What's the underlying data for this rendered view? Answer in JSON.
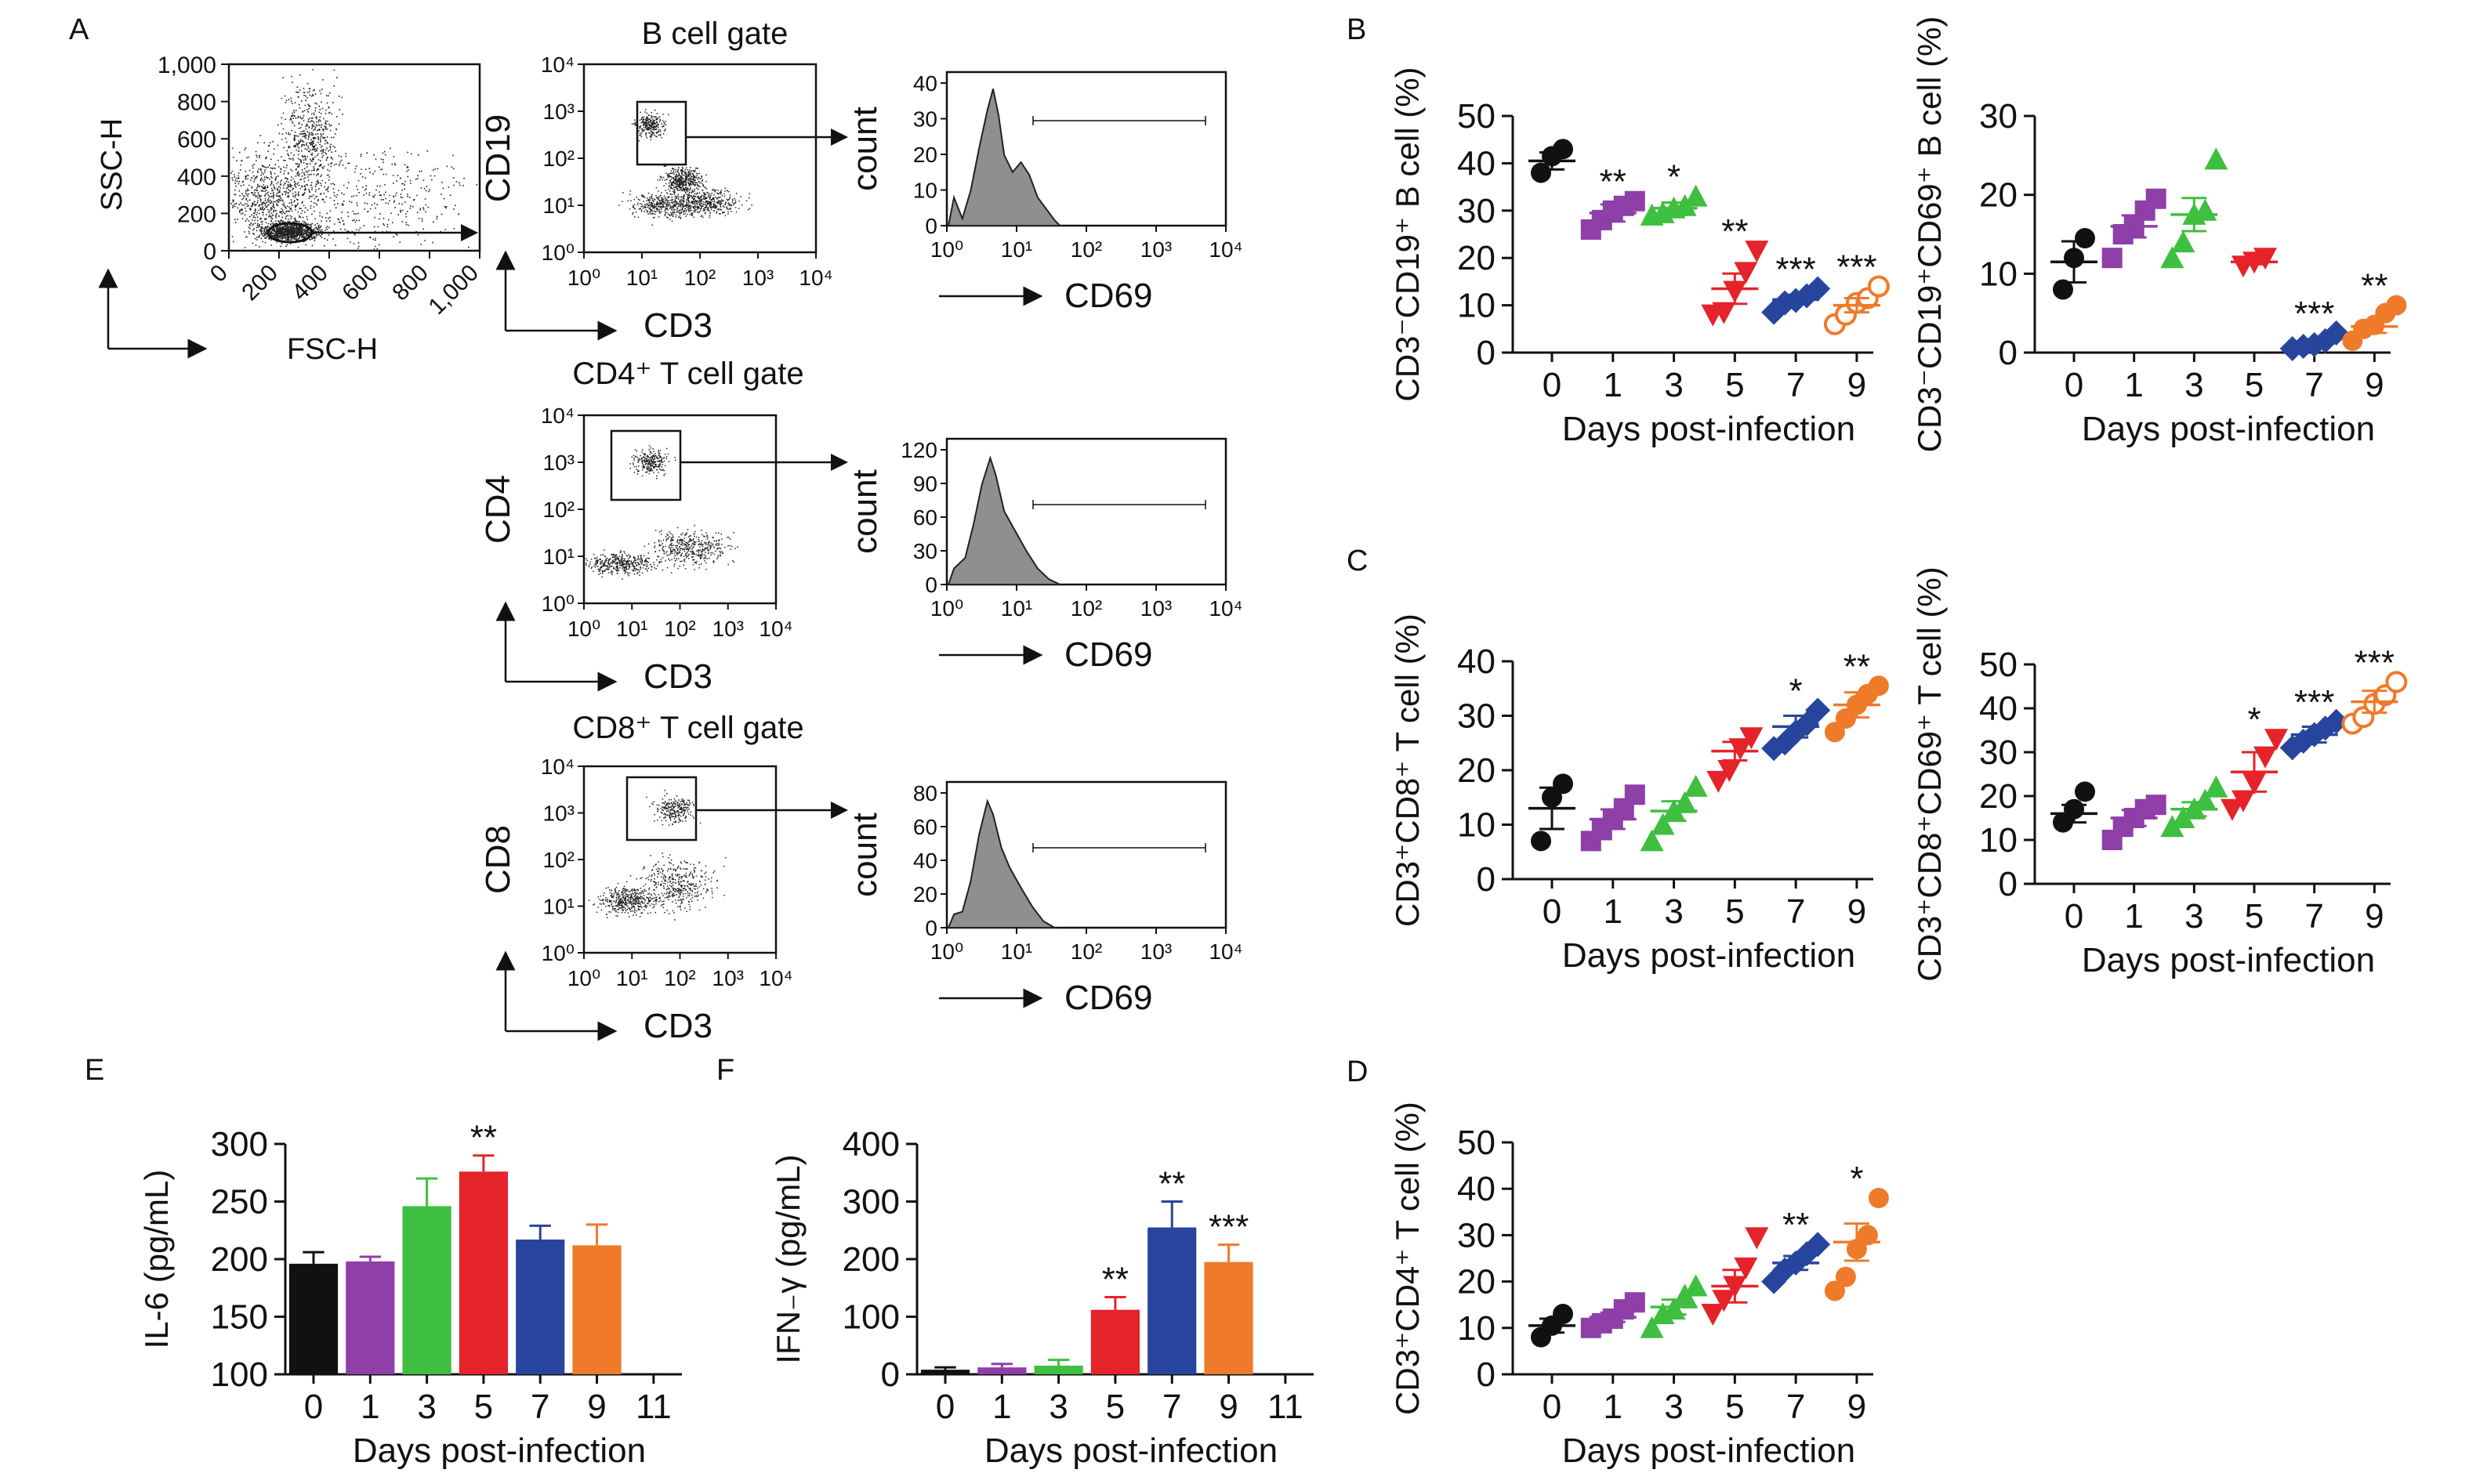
{
  "panel_letters": {
    "A": "A",
    "B": "B",
    "C": "C",
    "D": "D",
    "E": "E",
    "F": "F"
  },
  "colors": {
    "d0": "#111111",
    "d1": "#8e3fa8",
    "d3": "#3fbf3f",
    "d5": "#e5232b",
    "d7": "#27459c",
    "d9": "#ef7a2a",
    "hist_fill": "#8f8f8f"
  },
  "flow": {
    "fsc": {
      "ylabel": "SSC-H",
      "xlabel": "FSC-H",
      "yticks": [
        "1,000",
        "800",
        "600",
        "400",
        "200",
        "0"
      ],
      "xticks": [
        "0",
        "200",
        "400",
        "600",
        "800",
        "1,000"
      ]
    },
    "gates": [
      {
        "title": "B cell gate",
        "ylabel": "CD19",
        "xlabel": "CD3",
        "hist_ylabel": "count",
        "hist_xlabel": "CD69",
        "hist_yticks": [
          "40",
          "30",
          "20",
          "10",
          "0"
        ]
      },
      {
        "title": "CD4⁺ T cell gate",
        "ylabel": "CD4",
        "xlabel": "CD3",
        "hist_ylabel": "count",
        "hist_xlabel": "CD69",
        "hist_yticks": [
          "120",
          "90",
          "60",
          "30",
          "0"
        ]
      },
      {
        "title": "CD8⁺ T cell gate",
        "ylabel": "CD8",
        "xlabel": "CD3",
        "hist_ylabel": "count",
        "hist_xlabel": "CD69",
        "hist_yticks": [
          "80",
          "60",
          "40",
          "20",
          "0"
        ]
      }
    ],
    "log_ticks": [
      "10⁰",
      "10¹",
      "10²",
      "10³",
      "10⁴"
    ]
  },
  "chart_data": [
    {
      "id": "B1",
      "type": "scatter",
      "ylabel": "CD3⁻CD19⁺ B cell (%)",
      "xlabel": "Days post-infection",
      "categories": [
        "0",
        "1",
        "3",
        "5",
        "7",
        "9"
      ],
      "ylim": [
        0,
        50
      ],
      "yticks": [
        0,
        10,
        20,
        30,
        40,
        50
      ],
      "points": [
        [
          38,
          41.5,
          43
        ],
        [
          26,
          28,
          30,
          31,
          32
        ],
        [
          29,
          29.5,
          30.5,
          31,
          33
        ],
        [
          8,
          8.5,
          13,
          17,
          21.5
        ],
        [
          8.5,
          10.5,
          11,
          12,
          13.5
        ],
        [
          6,
          8,
          10.5,
          11.5,
          14
        ]
      ],
      "means": [
        40.5,
        29.5,
        30.5,
        13.5,
        11.2,
        10
      ],
      "sems": [
        1.8,
        1.8,
        1.2,
        3.2,
        1.0,
        1.5
      ],
      "stars": [
        "",
        "**",
        "*",
        "**",
        "***",
        "***"
      ],
      "markers": [
        "circle",
        "square",
        "triangle",
        "down",
        "diamond",
        "open-circle"
      ]
    },
    {
      "id": "B2",
      "type": "scatter",
      "ylabel": "CD3⁻CD19⁺CD69⁺ B cell (%)",
      "xlabel": "Days post-infection",
      "categories": [
        "0",
        "1",
        "3",
        "5",
        "7",
        "9"
      ],
      "ylim": [
        0,
        30
      ],
      "yticks": [
        0,
        10,
        20,
        30
      ],
      "points": [
        [
          8,
          12,
          14.5
        ],
        [
          12,
          15,
          16,
          18,
          19.5
        ],
        [
          12,
          14,
          17.5,
          18,
          24.5
        ],
        [
          11,
          11.5,
          12
        ],
        [
          0.5,
          0.8,
          1,
          1.5,
          2.5
        ],
        [
          1.5,
          3,
          3.5,
          5,
          6
        ]
      ],
      "means": [
        11.5,
        16,
        17.5,
        11.5,
        1.2,
        3.3
      ],
      "sems": [
        2.6,
        1.4,
        2.1,
        0.3,
        0.4,
        0.8
      ],
      "stars": [
        "",
        "",
        "",
        "",
        "***",
        "**"
      ],
      "markers": [
        "circle",
        "square",
        "triangle",
        "down",
        "diamond",
        "circle"
      ]
    },
    {
      "id": "C1",
      "type": "scatter",
      "ylabel": "CD3⁺CD8⁺ T cell (%)",
      "xlabel": "Days post-infection",
      "categories": [
        "0",
        "1",
        "3",
        "5",
        "7",
        "9"
      ],
      "ylim": [
        0,
        40
      ],
      "yticks": [
        0,
        10,
        20,
        30,
        40
      ],
      "points": [
        [
          7,
          15,
          17.5
        ],
        [
          7,
          9,
          11,
          13,
          15.5
        ],
        [
          7,
          10,
          12.5,
          14,
          17
        ],
        [
          18,
          20,
          24,
          26
        ],
        [
          24,
          25,
          27,
          28.5,
          31
        ],
        [
          27,
          29.5,
          32,
          34,
          35.5
        ]
      ],
      "means": [
        13,
        11,
        12.5,
        23.5,
        28,
        32
      ],
      "sems": [
        3.8,
        1.8,
        1.8,
        1.7,
        2.0,
        2.3
      ],
      "stars": [
        "",
        "",
        "",
        "",
        "*",
        "**"
      ],
      "markers": [
        "circle",
        "square",
        "triangle",
        "down",
        "diamond",
        "circle"
      ]
    },
    {
      "id": "C2",
      "type": "scatter",
      "ylabel": "CD3⁺CD8⁺CD69⁺ T cell (%)",
      "xlabel": "Days post-infection",
      "categories": [
        "0",
        "1",
        "3",
        "5",
        "7",
        "9"
      ],
      "ylim": [
        0,
        50
      ],
      "yticks": [
        0,
        10,
        20,
        30,
        40,
        50
      ],
      "points": [
        [
          14,
          17,
          21
        ],
        [
          10,
          13,
          15,
          17,
          18
        ],
        [
          13,
          15,
          17,
          19,
          22
        ],
        [
          17,
          19,
          23,
          29,
          33
        ],
        [
          31,
          32.5,
          34,
          35.5,
          37
        ],
        [
          36.5,
          38,
          41,
          43,
          46
        ]
      ],
      "means": [
        16,
        15,
        17,
        25.5,
        34,
        41.5
      ],
      "sems": [
        2.0,
        1.8,
        1.6,
        4.5,
        1.8,
        2.5
      ],
      "stars": [
        "",
        "",
        "",
        "*",
        "***",
        "***"
      ],
      "markers": [
        "circle",
        "square",
        "triangle",
        "down",
        "diamond",
        "open-circle"
      ]
    },
    {
      "id": "D",
      "type": "scatter",
      "ylabel": "CD3⁺CD4⁺ T cell (%)",
      "xlabel": "Days post-infection",
      "categories": [
        "0",
        "1",
        "3",
        "5",
        "7",
        "9"
      ],
      "ylim": [
        0,
        50
      ],
      "yticks": [
        0,
        10,
        20,
        30,
        40,
        50
      ],
      "points": [
        [
          8,
          10.5,
          13
        ],
        [
          10,
          11,
          12,
          14,
          15.5
        ],
        [
          10,
          13,
          14,
          17,
          19
        ],
        [
          13,
          16,
          19,
          23,
          29.5
        ],
        [
          20,
          22.5,
          24,
          26,
          28
        ],
        [
          18,
          21,
          27,
          30,
          38
        ]
      ],
      "means": [
        10.5,
        12.3,
        14.5,
        19,
        24,
        28.5
      ],
      "sems": [
        1.5,
        1.0,
        1.6,
        3.5,
        1.5,
        4.0
      ],
      "stars": [
        "",
        "",
        "",
        "",
        "**",
        "*"
      ],
      "markers": [
        "circle",
        "square",
        "triangle",
        "down",
        "diamond",
        "circle"
      ]
    },
    {
      "id": "E",
      "type": "bar",
      "ylabel": "IL-6 (pg/mL)",
      "xlabel": "Days post-infection",
      "categories": [
        "0",
        "1",
        "3",
        "5",
        "7",
        "9"
      ],
      "xticks": [
        "0",
        "1",
        "3",
        "5",
        "7",
        "9",
        "11"
      ],
      "ylim": [
        100,
        300
      ],
      "yticks": [
        100,
        150,
        200,
        250,
        300
      ],
      "values": [
        196,
        198,
        246,
        276,
        217,
        212
      ],
      "errors": [
        10,
        4,
        24,
        14,
        12,
        18
      ],
      "stars": [
        "",
        "",
        "",
        "**",
        "",
        ""
      ]
    },
    {
      "id": "F",
      "type": "bar",
      "ylabel": "IFN₋γ (pg/mL)",
      "xlabel": "Days post-infection",
      "categories": [
        "0",
        "1",
        "3",
        "5",
        "7",
        "9"
      ],
      "xticks": [
        "0",
        "1",
        "3",
        "5",
        "7",
        "9",
        "11"
      ],
      "ylim": [
        0,
        400
      ],
      "yticks": [
        0,
        100,
        200,
        300,
        400
      ],
      "values": [
        8,
        12,
        15,
        112,
        255,
        195
      ],
      "errors": [
        4,
        6,
        10,
        22,
        45,
        30
      ],
      "stars": [
        "",
        "",
        "",
        "**",
        "**",
        "***"
      ]
    }
  ]
}
